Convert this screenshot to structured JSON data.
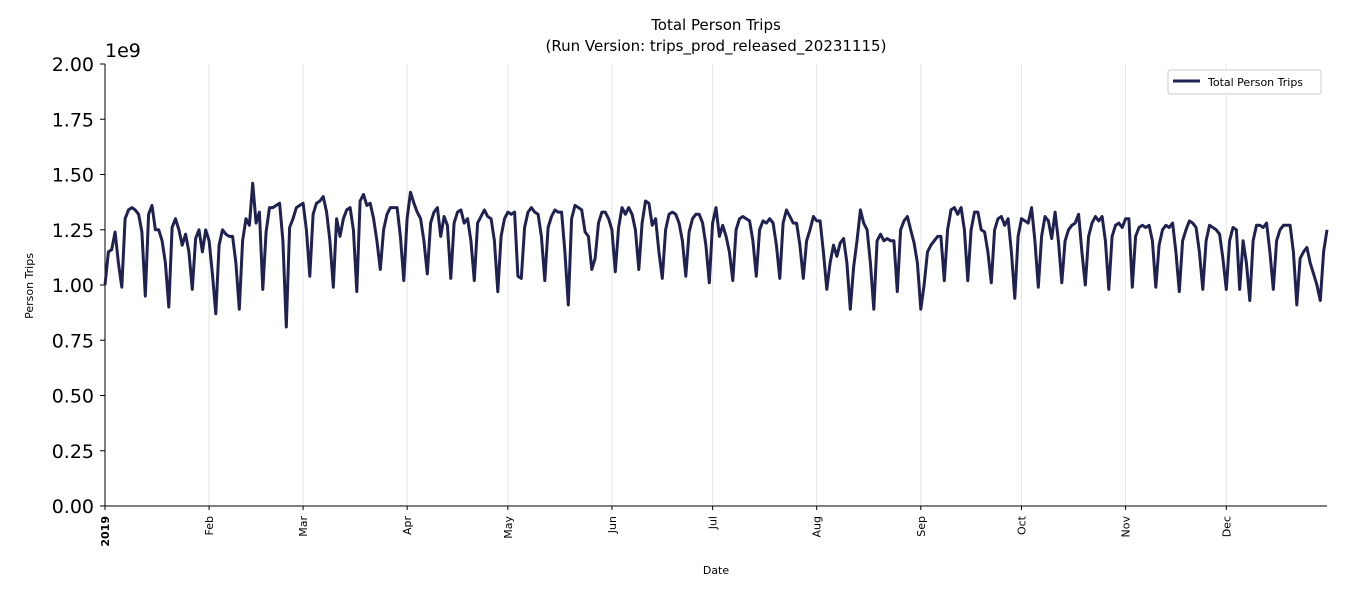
{
  "chart_data": {
    "type": "line",
    "title": "Total Person Trips",
    "subtitle": "(Run Version: trips_prod_released_20231115)",
    "xlabel": "Date",
    "ylabel": "Person Trips",
    "y_offset_label": "1e9",
    "ylim": [
      0,
      2.0
    ],
    "xlim": [
      "2019-01-01",
      "2019-12-31"
    ],
    "y_ticks": [
      "0.00",
      "0.25",
      "0.50",
      "0.75",
      "1.00",
      "1.25",
      "1.50",
      "1.75",
      "2.00"
    ],
    "x_ticks": [
      {
        "label": "2019",
        "date": "2019-01-01",
        "bold": true
      },
      {
        "label": "Feb",
        "date": "2019-02-01"
      },
      {
        "label": "Mar",
        "date": "2019-03-01"
      },
      {
        "label": "Apr",
        "date": "2019-04-01"
      },
      {
        "label": "May",
        "date": "2019-05-01"
      },
      {
        "label": "Jun",
        "date": "2019-06-01"
      },
      {
        "label": "Jul",
        "date": "2019-07-01"
      },
      {
        "label": "Aug",
        "date": "2019-08-01"
      },
      {
        "label": "Sep",
        "date": "2019-09-01"
      },
      {
        "label": "Oct",
        "date": "2019-10-01"
      },
      {
        "label": "Nov",
        "date": "2019-11-01"
      },
      {
        "label": "Dec",
        "date": "2019-12-01"
      }
    ],
    "grid": "vertical at month ticks",
    "legend_position": "top-right",
    "series": [
      {
        "name": "Total Person Trips",
        "color": "#1f2151",
        "x_start": "2019-01-01",
        "x_step": "1 day",
        "values_unit": "1e9",
        "values": [
          1.0,
          1.15,
          1.16,
          1.24,
          1.1,
          0.99,
          1.3,
          1.34,
          1.35,
          1.34,
          1.32,
          1.24,
          0.95,
          1.32,
          1.36,
          1.25,
          1.25,
          1.2,
          1.1,
          0.9,
          1.26,
          1.3,
          1.25,
          1.18,
          1.23,
          1.15,
          0.98,
          1.21,
          1.25,
          1.15,
          1.25,
          1.2,
          1.05,
          0.87,
          1.18,
          1.25,
          1.23,
          1.22,
          1.22,
          1.1,
          0.89,
          1.2,
          1.3,
          1.27,
          1.46,
          1.28,
          1.33,
          0.98,
          1.24,
          1.35,
          1.35,
          1.36,
          1.37,
          1.2,
          0.81,
          1.26,
          1.3,
          1.35,
          1.36,
          1.37,
          1.25,
          1.04,
          1.32,
          1.37,
          1.38,
          1.4,
          1.33,
          1.2,
          0.99,
          1.3,
          1.22,
          1.3,
          1.34,
          1.35,
          1.25,
          0.97,
          1.38,
          1.41,
          1.36,
          1.37,
          1.3,
          1.2,
          1.07,
          1.25,
          1.32,
          1.35,
          1.35,
          1.35,
          1.22,
          1.02,
          1.3,
          1.42,
          1.37,
          1.33,
          1.3,
          1.2,
          1.05,
          1.28,
          1.33,
          1.35,
          1.22,
          1.31,
          1.27,
          1.03,
          1.28,
          1.33,
          1.34,
          1.28,
          1.3,
          1.2,
          1.02,
          1.28,
          1.31,
          1.34,
          1.31,
          1.3,
          1.2,
          0.97,
          1.22,
          1.3,
          1.33,
          1.32,
          1.33,
          1.04,
          1.03,
          1.26,
          1.33,
          1.35,
          1.33,
          1.32,
          1.22,
          1.02,
          1.26,
          1.31,
          1.34,
          1.33,
          1.33,
          1.15,
          0.91,
          1.3,
          1.36,
          1.35,
          1.34,
          1.24,
          1.22,
          1.07,
          1.12,
          1.28,
          1.33,
          1.33,
          1.3,
          1.25,
          1.06,
          1.26,
          1.35,
          1.32,
          1.35,
          1.32,
          1.25,
          1.07,
          1.28,
          1.38,
          1.37,
          1.27,
          1.3,
          1.15,
          1.03,
          1.25,
          1.32,
          1.33,
          1.32,
          1.28,
          1.2,
          1.04,
          1.24,
          1.3,
          1.32,
          1.32,
          1.28,
          1.18,
          1.01,
          1.28,
          1.35,
          1.22,
          1.27,
          1.22,
          1.15,
          1.02,
          1.25,
          1.3,
          1.31,
          1.3,
          1.29,
          1.2,
          1.04,
          1.25,
          1.29,
          1.28,
          1.3,
          1.28,
          1.18,
          1.03,
          1.28,
          1.34,
          1.31,
          1.28,
          1.28,
          1.18,
          1.03,
          1.2,
          1.25,
          1.31,
          1.29,
          1.29,
          1.15,
          0.98,
          1.1,
          1.18,
          1.13,
          1.19,
          1.21,
          1.1,
          0.89,
          1.08,
          1.2,
          1.34,
          1.28,
          1.25,
          1.1,
          0.89,
          1.2,
          1.23,
          1.2,
          1.21,
          1.2,
          1.2,
          0.97,
          1.25,
          1.29,
          1.31,
          1.25,
          1.19,
          1.1,
          0.89,
          1.0,
          1.15,
          1.18,
          1.2,
          1.22,
          1.22,
          1.02,
          1.25,
          1.34,
          1.35,
          1.32,
          1.35,
          1.25,
          1.02,
          1.25,
          1.33,
          1.33,
          1.25,
          1.24,
          1.15,
          1.01,
          1.25,
          1.3,
          1.31,
          1.27,
          1.3,
          1.15,
          0.94,
          1.22,
          1.3,
          1.29,
          1.28,
          1.35,
          1.2,
          0.99,
          1.22,
          1.31,
          1.29,
          1.21,
          1.33,
          1.2,
          1.01,
          1.2,
          1.25,
          1.27,
          1.28,
          1.32,
          1.15,
          1.0,
          1.22,
          1.28,
          1.31,
          1.29,
          1.31,
          1.2,
          0.98,
          1.22,
          1.27,
          1.28,
          1.26,
          1.3,
          1.3,
          0.99,
          1.22,
          1.26,
          1.27,
          1.26,
          1.27,
          1.2,
          0.99,
          1.18,
          1.25,
          1.27,
          1.26,
          1.28,
          1.15,
          0.97,
          1.2,
          1.25,
          1.29,
          1.28,
          1.26,
          1.15,
          0.98,
          1.2,
          1.27,
          1.26,
          1.25,
          1.23,
          1.12,
          0.98,
          1.2,
          1.26,
          1.25,
          0.98,
          1.2,
          1.1,
          0.93,
          1.2,
          1.27,
          1.27,
          1.26,
          1.28,
          1.15,
          0.98,
          1.2,
          1.25,
          1.27,
          1.27,
          1.27,
          1.15,
          0.91,
          1.12,
          1.15,
          1.17,
          1.1,
          1.05,
          1.0,
          0.93,
          1.15,
          1.25
        ]
      }
    ]
  }
}
